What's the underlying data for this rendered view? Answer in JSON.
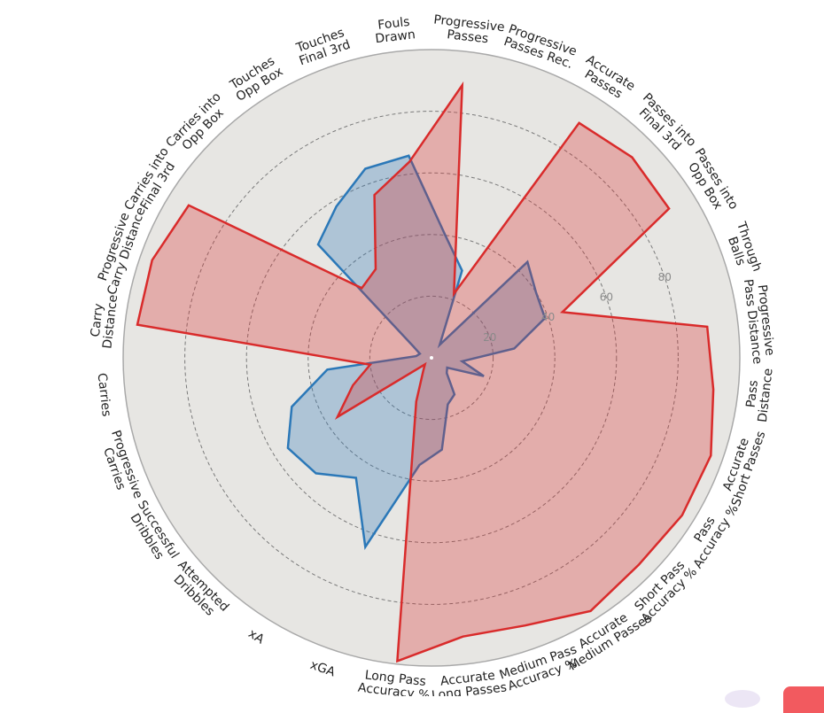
{
  "chart_data": {
    "type": "radar",
    "axes": [
      {
        "lines": [
          "Fouls",
          "Drawn"
        ]
      },
      {
        "lines": [
          "Progressive",
          "Passes"
        ]
      },
      {
        "lines": [
          "Progressive",
          "Passes Rec."
        ]
      },
      {
        "lines": [
          "Accurate",
          "Passes"
        ]
      },
      {
        "lines": [
          "Passes into",
          "Final 3rd"
        ]
      },
      {
        "lines": [
          "Passes into",
          "Opp Box"
        ]
      },
      {
        "lines": [
          "Through",
          "Balls"
        ]
      },
      {
        "lines": [
          "Progressive",
          "Pass Distance"
        ]
      },
      {
        "lines": [
          "Pass",
          "Distance"
        ]
      },
      {
        "lines": [
          "Accurate",
          "Short Passes"
        ]
      },
      {
        "lines": [
          "Pass",
          "Accuracy %"
        ]
      },
      {
        "lines": [
          "Short Pass",
          "Accuracy %"
        ]
      },
      {
        "lines": [
          "Accurate",
          "Medium Passes"
        ]
      },
      {
        "lines": [
          "Medium Pass",
          "Accuracy %"
        ]
      },
      {
        "lines": [
          "Accurate",
          "Long Passes"
        ]
      },
      {
        "lines": [
          "Long Pass",
          "Accuracy %"
        ]
      },
      {
        "lines": [
          "xGA"
        ]
      },
      {
        "lines": [
          "xA"
        ]
      },
      {
        "lines": [
          "Attempted",
          "Dribbles"
        ]
      },
      {
        "lines": [
          "Successful",
          "Dribbles"
        ]
      },
      {
        "lines": [
          "Progressive",
          "Carries"
        ]
      },
      {
        "lines": [
          "Carries"
        ]
      },
      {
        "lines": [
          "Carry",
          "Distance"
        ]
      },
      {
        "lines": [
          "Progressive",
          "Carry Distance"
        ]
      },
      {
        "lines": [
          "Carries into",
          "Final 3rd"
        ]
      },
      {
        "lines": [
          "Carries into",
          "Opp Box"
        ]
      },
      {
        "lines": [
          "Touches",
          "Opp Box"
        ]
      },
      {
        "lines": [
          "Touches",
          "Final 3rd"
        ]
      }
    ],
    "rlim": [
      0,
      100
    ],
    "ring_ticks": [
      20,
      40,
      60,
      80
    ],
    "series": [
      {
        "color": "#2b78b8",
        "fill": "#2b78b8",
        "values": [
          66,
          40,
          30,
          5,
          44,
          40,
          39,
          27,
          10,
          18,
          6,
          7,
          14,
          16,
          30,
          35,
          65,
          46,
          53,
          55,
          48,
          34,
          5,
          4,
          7,
          52,
          58,
          65
        ]
      },
      {
        "color": "#d92b2b",
        "fill": "#d92b2b",
        "values": [
          64,
          89,
          22,
          90,
          92,
          91,
          45,
          90,
          92,
          96,
          96,
          95,
          97,
          92,
          91,
          99,
          15,
          5,
          3,
          36,
          27,
          20,
          96,
          96,
          93,
          32,
          34,
          56
        ]
      }
    ]
  }
}
